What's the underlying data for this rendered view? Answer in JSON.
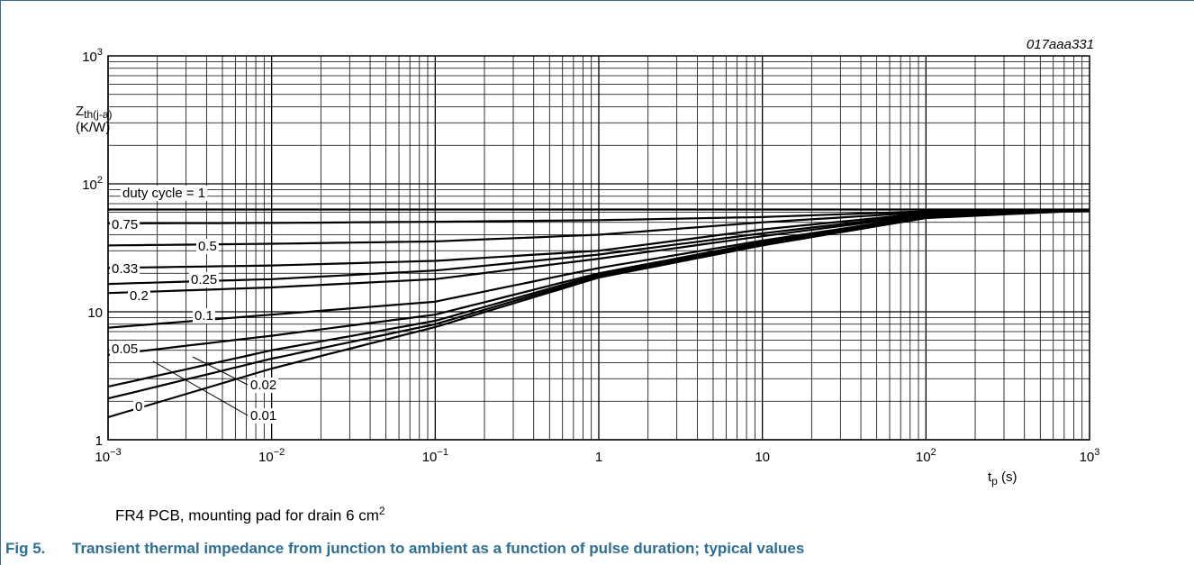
{
  "chart_data": {
    "type": "line",
    "code": "017aaa331",
    "x_scale": "log",
    "y_scale": "log",
    "xlim": [
      0.001,
      1000
    ],
    "ylim": [
      1,
      1000
    ],
    "grid": true,
    "ylabel_main": "Z",
    "ylabel_sub": "th(j-a)",
    "yunit": "(K/W)",
    "xlabel_main": "t",
    "xlabel_sub": "p",
    "xunit": "(s)",
    "x_ticks": [
      {
        "value": 0.001,
        "base": "10",
        "exp": "−3"
      },
      {
        "value": 0.01,
        "base": "10",
        "exp": "−2"
      },
      {
        "value": 0.1,
        "base": "10",
        "exp": "−1"
      },
      {
        "value": 1,
        "base": "1",
        "exp": ""
      },
      {
        "value": 10,
        "base": "10",
        "exp": ""
      },
      {
        "value": 100,
        "base": "10",
        "exp": "2"
      },
      {
        "value": 1000,
        "base": "10",
        "exp": "3"
      }
    ],
    "y_ticks": [
      {
        "value": 1,
        "base": "1",
        "exp": ""
      },
      {
        "value": 10,
        "base": "10",
        "exp": ""
      },
      {
        "value": 100,
        "base": "10",
        "exp": "2"
      },
      {
        "value": 1000,
        "base": "10",
        "exp": "3"
      }
    ],
    "series": [
      {
        "name": "duty cycle = 1",
        "x": [
          0.001,
          1000
        ],
        "y": [
          63,
          63
        ]
      },
      {
        "name": "0.75",
        "x": [
          0.001,
          0.01,
          0.1,
          1,
          10,
          100,
          1000
        ],
        "y": [
          49,
          49.5,
          50.5,
          52,
          55,
          61,
          62
        ]
      },
      {
        "name": "0.5",
        "x": [
          0.001,
          0.01,
          0.1,
          1,
          10,
          100,
          1000
        ],
        "y": [
          33,
          34,
          35.5,
          40,
          50,
          60,
          62
        ]
      },
      {
        "name": "0.33",
        "x": [
          0.001,
          0.01,
          0.1,
          1,
          10,
          100,
          1000
        ],
        "y": [
          22,
          23,
          25,
          30,
          44,
          59,
          62
        ]
      },
      {
        "name": "0.25",
        "x": [
          0.001,
          0.01,
          0.1,
          1,
          10,
          100,
          1000
        ],
        "y": [
          16.5,
          18,
          21,
          28,
          41,
          58,
          62
        ]
      },
      {
        "name": "0.2",
        "x": [
          0.001,
          0.01,
          0.1,
          1,
          10,
          100,
          1000
        ],
        "y": [
          14,
          15.5,
          18,
          26,
          39,
          57,
          62
        ]
      },
      {
        "name": "0.1",
        "x": [
          0.001,
          0.01,
          0.1,
          1,
          10,
          100,
          1000
        ],
        "y": [
          7.5,
          9.5,
          12,
          22,
          36,
          56,
          62
        ]
      },
      {
        "name": "0.05",
        "x": [
          0.001,
          0.01,
          0.1,
          1,
          10,
          100,
          1000
        ],
        "y": [
          4.6,
          6.5,
          9.5,
          20,
          35,
          55,
          62
        ]
      },
      {
        "name": "0.02",
        "x": [
          0.001,
          0.01,
          0.1,
          1,
          10,
          100,
          1000
        ],
        "y": [
          2.6,
          5,
          8.5,
          19.5,
          34,
          55,
          62
        ]
      },
      {
        "name": "0.01",
        "x": [
          0.001,
          0.01,
          0.1,
          1,
          10,
          100,
          1000
        ],
        "y": [
          2.1,
          4.3,
          8,
          19,
          34,
          55,
          62
        ]
      },
      {
        "name": "0",
        "x": [
          0.001,
          0.01,
          0.1,
          1,
          10,
          100,
          1000
        ],
        "y": [
          1.5,
          3.6,
          7.6,
          18.5,
          33,
          54,
          62
        ]
      }
    ]
  },
  "note": {
    "text": "FR4 PCB, mounting pad for drain 6 cm",
    "sup": "2"
  },
  "caption": {
    "fig": "Fig 5.",
    "text": "Transient thermal impedance from junction to ambient as a function of pulse duration; typical values"
  }
}
